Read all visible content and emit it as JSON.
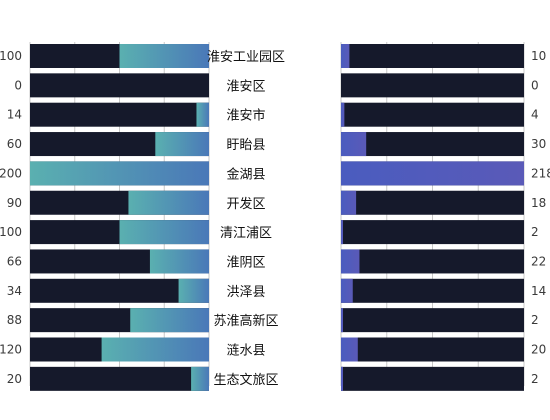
{
  "chart_data": {
    "type": "bar",
    "layout": "butterfly",
    "categories": [
      "淮安工业园区",
      "淮安区",
      "淮安市",
      "盱眙县",
      "金湖县",
      "开发区",
      "清江浦区",
      "淮阴区",
      "洪泽县",
      "苏淮高新区",
      "涟水县",
      "生态文旅区"
    ],
    "series": [
      {
        "side": "left",
        "values": [
          100,
          0,
          14,
          60,
          200,
          90,
          100,
          66,
          34,
          88,
          120,
          20
        ],
        "xlim": [
          0,
          200
        ],
        "direction": "right-to-left"
      },
      {
        "side": "right",
        "values": [
          10,
          0,
          4,
          30,
          218,
          18,
          2,
          22,
          14,
          2,
          20,
          2
        ],
        "xlim": [
          0,
          218
        ],
        "direction": "left-to-right"
      }
    ],
    "colors": {
      "track": "#15192b",
      "left_gradient": [
        "#5ab0b0",
        "#4a78b8"
      ],
      "right_gradient": [
        "#4a5cbf",
        "#5a5ab8"
      ],
      "grid": "#c8c8c8"
    },
    "grid": true
  }
}
